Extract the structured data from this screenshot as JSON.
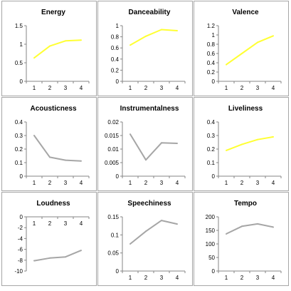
{
  "chart_data": [
    {
      "type": "line",
      "title": "Energy",
      "categories": [
        "1",
        "2",
        "3",
        "4"
      ],
      "values": [
        0.63,
        0.95,
        1.09,
        1.11
      ],
      "ylim": [
        0,
        1.5
      ],
      "yticks": [
        "0",
        "0.5",
        "1",
        "1.5"
      ],
      "line_color": "#ffff33",
      "x_axis_at_top": false
    },
    {
      "type": "line",
      "title": "Danceability",
      "categories": [
        "1",
        "2",
        "3",
        "4"
      ],
      "values": [
        0.65,
        0.81,
        0.93,
        0.91
      ],
      "ylim": [
        0,
        1
      ],
      "yticks": [
        "0",
        "0.2",
        "0.4",
        "0.6",
        "0.8",
        "1"
      ],
      "line_color": "#ffff33",
      "x_axis_at_top": false
    },
    {
      "type": "line",
      "title": "Valence",
      "categories": [
        "1",
        "2",
        "3",
        "4"
      ],
      "values": [
        0.36,
        0.6,
        0.84,
        0.98
      ],
      "ylim": [
        0,
        1.2
      ],
      "yticks": [
        "0",
        "0.2",
        "0.4",
        "0.6",
        "0.8",
        "1",
        "1.2"
      ],
      "line_color": "#ffff33",
      "x_axis_at_top": false
    },
    {
      "type": "line",
      "title": "Acousticness",
      "categories": [
        "1",
        "2",
        "3",
        "4"
      ],
      "values": [
        0.3,
        0.14,
        0.118,
        0.112
      ],
      "ylim": [
        0,
        0.4
      ],
      "yticks": [
        "0",
        "0.1",
        "0.2",
        "0.3",
        "0.4"
      ],
      "line_color": "#a6a6a6",
      "x_axis_at_top": false
    },
    {
      "type": "line",
      "title": "Instrumentalness",
      "categories": [
        "1",
        "2",
        "3",
        "4"
      ],
      "values": [
        0.0155,
        0.006,
        0.0123,
        0.0121
      ],
      "ylim": [
        0,
        0.02
      ],
      "yticks": [
        "0",
        "0.005",
        "0.01",
        "0.015",
        "0.02"
      ],
      "line_color": "#a6a6a6",
      "x_axis_at_top": false
    },
    {
      "type": "line",
      "title": "Liveliness",
      "categories": [
        "1",
        "2",
        "3",
        "4"
      ],
      "values": [
        0.19,
        0.235,
        0.27,
        0.29
      ],
      "ylim": [
        0,
        0.4
      ],
      "yticks": [
        "0",
        "0.1",
        "0.2",
        "0.3",
        "0.4"
      ],
      "line_color": "#ffff33",
      "x_axis_at_top": false
    },
    {
      "type": "line",
      "title": "Loudness",
      "categories": [
        "1",
        "2",
        "3",
        "4"
      ],
      "values": [
        -8.1,
        -7.6,
        -7.4,
        -6.2
      ],
      "ylim": [
        -10,
        0
      ],
      "yticks": [
        "-10",
        "-8",
        "-6",
        "-4",
        "-2",
        "0"
      ],
      "line_color": "#a6a6a6",
      "x_axis_at_top": true
    },
    {
      "type": "line",
      "title": "Speechiness",
      "categories": [
        "1",
        "2",
        "3",
        "4"
      ],
      "values": [
        0.075,
        0.11,
        0.14,
        0.13
      ],
      "ylim": [
        0,
        0.15
      ],
      "yticks": [
        "0",
        "0.05",
        "0.1",
        "0.15"
      ],
      "line_color": "#a6a6a6",
      "x_axis_at_top": false
    },
    {
      "type": "line",
      "title": "Tempo",
      "categories": [
        "1",
        "2",
        "3",
        "4"
      ],
      "values": [
        137,
        165,
        174,
        162
      ],
      "ylim": [
        0,
        200
      ],
      "yticks": [
        "0",
        "50",
        "100",
        "150",
        "200"
      ],
      "line_color": "#a6a6a6",
      "x_axis_at_top": false
    }
  ]
}
